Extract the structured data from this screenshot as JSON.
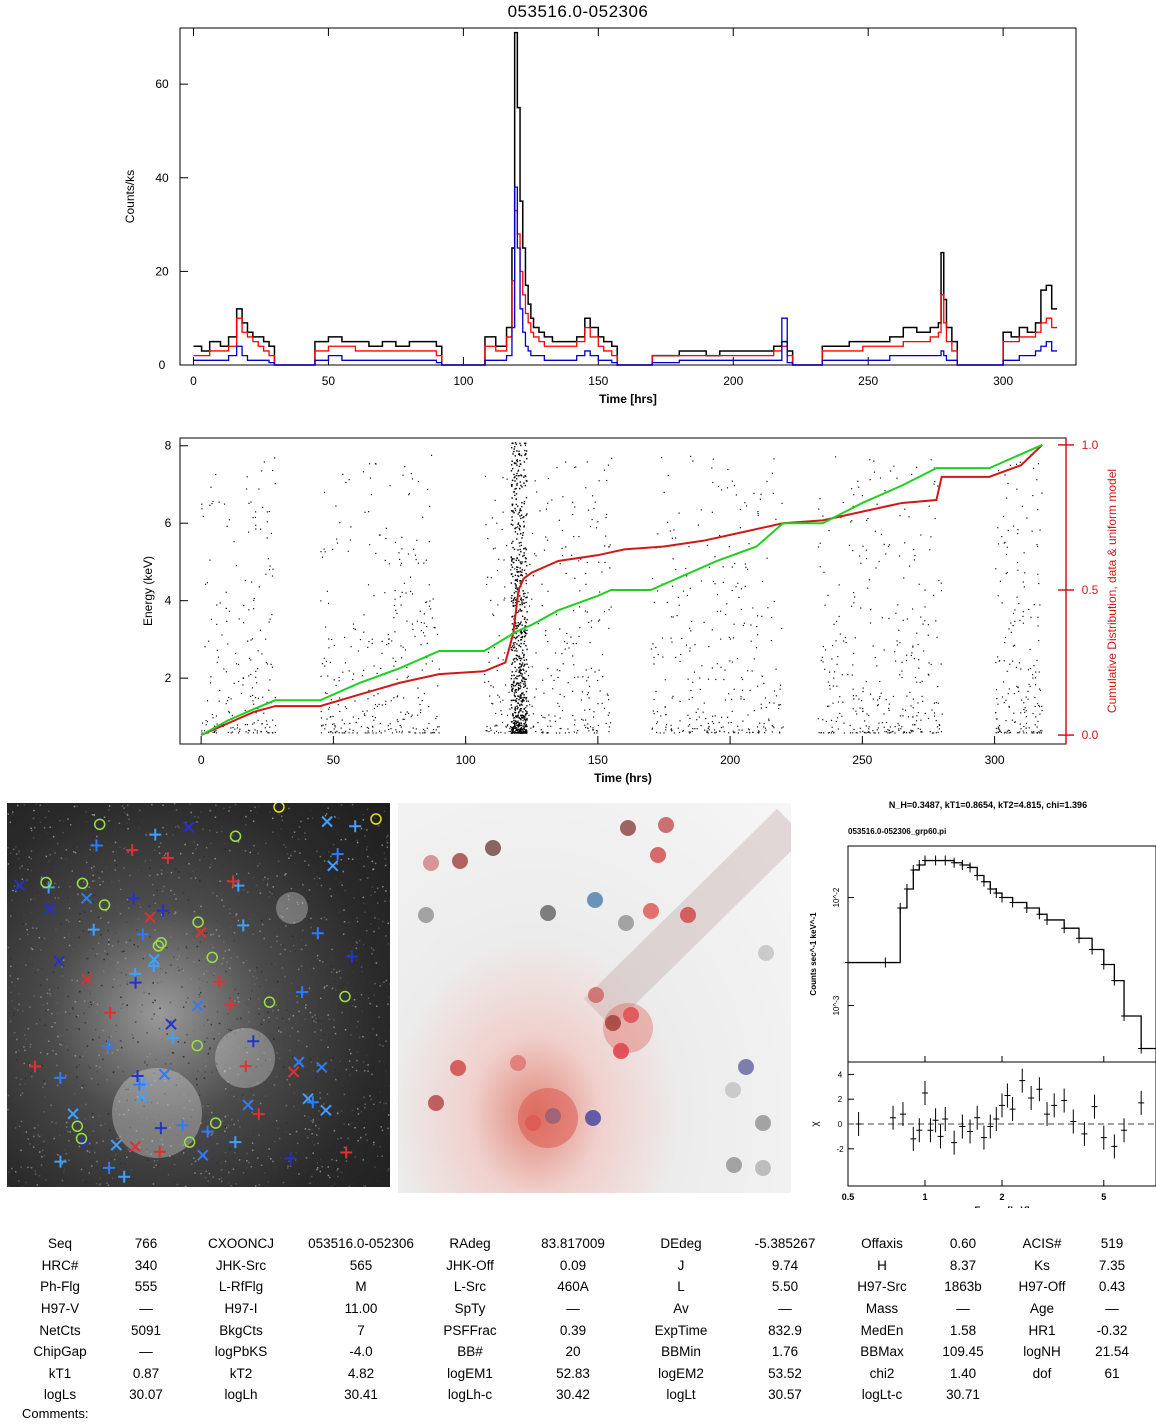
{
  "chart_data": [
    {
      "type": "line",
      "title": "053516.0-052306",
      "xlabel": "Time [hrs]",
      "ylabel": "Counts/ks",
      "xlim": [
        -5,
        327
      ],
      "ylim": [
        0,
        72
      ],
      "xticks": [
        0,
        50,
        100,
        150,
        200,
        250,
        300
      ],
      "yticks": [
        0,
        20,
        40,
        60
      ],
      "series": [
        {
          "color": "#000000",
          "x": [
            0,
            3,
            6,
            10,
            13,
            16,
            18,
            20,
            22,
            24,
            26,
            28,
            45,
            50,
            55,
            60,
            65,
            70,
            75,
            80,
            85,
            90,
            108,
            112,
            116,
            118,
            119,
            120,
            121,
            122,
            123,
            124,
            125,
            126,
            128,
            130,
            133,
            136,
            139,
            142,
            145,
            147,
            150,
            152,
            155,
            170,
            175,
            180,
            185,
            190,
            195,
            200,
            205,
            210,
            215,
            218,
            220,
            233,
            238,
            243,
            248,
            253,
            258,
            263,
            268,
            273,
            276,
            277,
            278,
            279,
            281,
            300,
            303,
            306,
            309,
            312,
            314,
            316,
            318
          ],
          "y": [
            4,
            3,
            5,
            4,
            6,
            12,
            9,
            7,
            6,
            6,
            5,
            4,
            5,
            6,
            5,
            5,
            4,
            5,
            4,
            5,
            5,
            4,
            6,
            4,
            8,
            25,
            71,
            55,
            35,
            25,
            17,
            13,
            10,
            8,
            7,
            6,
            5,
            5,
            5,
            6,
            10,
            8,
            6,
            5,
            4,
            2,
            2,
            3,
            3,
            2,
            3,
            3,
            3,
            3,
            4,
            5,
            3,
            4,
            4,
            5,
            5,
            5,
            6,
            8,
            7,
            8,
            9,
            24,
            14,
            8,
            5,
            7,
            6,
            8,
            7,
            9,
            16,
            17,
            12
          ]
        },
        {
          "color": "#ff0000",
          "x": [
            0,
            3,
            6,
            10,
            13,
            16,
            18,
            20,
            22,
            24,
            26,
            28,
            45,
            50,
            55,
            60,
            65,
            70,
            75,
            80,
            85,
            90,
            108,
            112,
            116,
            118,
            119,
            120,
            121,
            122,
            123,
            124,
            125,
            126,
            128,
            130,
            133,
            136,
            139,
            142,
            145,
            147,
            150,
            152,
            155,
            170,
            175,
            180,
            185,
            190,
            195,
            200,
            205,
            210,
            215,
            218,
            220,
            233,
            238,
            243,
            248,
            253,
            258,
            263,
            268,
            273,
            276,
            277,
            278,
            279,
            281,
            300,
            303,
            306,
            309,
            312,
            314,
            316,
            318
          ],
          "y": [
            2,
            2,
            3,
            3,
            4,
            10,
            7,
            6,
            5,
            4,
            3,
            2,
            3,
            4,
            4,
            3,
            3,
            3,
            3,
            3,
            3,
            2,
            4,
            3,
            6,
            18,
            33,
            28,
            20,
            15,
            11,
            9,
            7,
            6,
            5,
            4,
            4,
            4,
            4,
            5,
            8,
            6,
            4,
            3,
            2,
            2,
            2,
            2,
            2,
            2,
            2,
            2,
            2,
            2,
            3,
            4,
            2,
            3,
            3,
            3,
            4,
            4,
            4,
            5,
            5,
            6,
            7,
            15,
            9,
            5,
            3,
            5,
            5,
            6,
            6,
            7,
            9,
            10,
            8
          ]
        },
        {
          "color": "#0000cc",
          "x": [
            0,
            3,
            6,
            10,
            13,
            16,
            18,
            20,
            22,
            24,
            26,
            28,
            45,
            50,
            55,
            60,
            65,
            70,
            75,
            80,
            85,
            90,
            108,
            112,
            116,
            118,
            119,
            120,
            121,
            122,
            123,
            124,
            125,
            126,
            128,
            130,
            133,
            136,
            139,
            142,
            145,
            147,
            150,
            152,
            155,
            170,
            175,
            180,
            185,
            190,
            195,
            200,
            205,
            210,
            215,
            218,
            220,
            233,
            238,
            243,
            248,
            253,
            258,
            263,
            268,
            273,
            276,
            277,
            278,
            279,
            281,
            300,
            303,
            306,
            309,
            312,
            314,
            316,
            318
          ],
          "y": [
            1,
            1,
            1,
            1,
            2,
            4,
            2,
            1,
            1,
            1,
            1,
            0.5,
            1,
            2,
            1,
            1,
            1,
            1,
            1,
            1,
            1,
            0.5,
            1,
            1,
            2,
            8,
            38,
            25,
            12,
            7,
            4,
            3,
            2,
            2,
            2,
            1,
            1,
            1,
            1,
            2,
            3,
            2,
            1,
            1,
            0.5,
            0.5,
            0.5,
            1,
            1,
            1,
            1,
            1,
            1,
            1,
            1,
            10,
            0.5,
            1,
            1,
            1,
            1,
            1,
            2,
            2,
            2,
            2,
            2,
            3,
            2,
            1,
            1,
            1,
            1,
            2,
            2,
            3,
            4,
            5,
            3
          ]
        }
      ]
    },
    {
      "type": "scatter",
      "xlabel": "Time (hrs)",
      "ylabel": "Energy (keV)",
      "y2label": "Cumulative Distribution, data & uniform model",
      "xlim": [
        -8,
        327
      ],
      "ylim": [
        0.3,
        8.2
      ],
      "y2lim": [
        -0.01,
        1.01
      ],
      "xticks": [
        0,
        50,
        100,
        150,
        200,
        250,
        300
      ],
      "yticks": [
        2,
        4,
        6,
        8
      ],
      "y2ticks": [
        0.0,
        0.5,
        1.0
      ],
      "y2ticklabels": [
        "0.0",
        "0.5",
        "1.0"
      ],
      "series": [
        {
          "name": "data",
          "color": "#d01818",
          "x": [
            0,
            10,
            20,
            28,
            45,
            60,
            75,
            90,
            107,
            115,
            118,
            120,
            122,
            125,
            135,
            150,
            160,
            175,
            190,
            205,
            220,
            235,
            250,
            265,
            278,
            280,
            298,
            310,
            318
          ],
          "y": [
            0,
            0.04,
            0.08,
            0.1,
            0.1,
            0.14,
            0.18,
            0.21,
            0.22,
            0.25,
            0.35,
            0.5,
            0.54,
            0.56,
            0.6,
            0.62,
            0.64,
            0.65,
            0.67,
            0.7,
            0.73,
            0.74,
            0.77,
            0.8,
            0.81,
            0.89,
            0.89,
            0.93,
            1.0
          ]
        },
        {
          "name": "uniform model",
          "color": "#20d020",
          "x": [
            0,
            10,
            20,
            28,
            45,
            60,
            75,
            90,
            107,
            118,
            120,
            125,
            135,
            150,
            155,
            170,
            180,
            195,
            210,
            220,
            235,
            250,
            265,
            278,
            298,
            318
          ],
          "y": [
            0,
            0.05,
            0.09,
            0.12,
            0.12,
            0.18,
            0.23,
            0.29,
            0.29,
            0.35,
            0.36,
            0.38,
            0.43,
            0.48,
            0.5,
            0.5,
            0.54,
            0.6,
            0.65,
            0.73,
            0.73,
            0.8,
            0.86,
            0.92,
            0.92,
            1.0
          ]
        }
      ],
      "event_segments": [
        [
          0,
          28,
          0.4
        ],
        [
          45,
          90,
          0.4
        ],
        [
          107,
          155,
          0.4
        ],
        [
          170,
          220,
          0.35
        ],
        [
          233,
          280,
          0.4
        ],
        [
          300,
          318,
          0.6
        ]
      ]
    },
    {
      "type": "line",
      "header": "N_H=0.3487, kT1=0.8654, kT2=4.815, chi=1.396",
      "subtitle": "053516.0-052306_grp60.pi",
      "xlabel": "Energy [keV]",
      "ylabel": "Counts sec^-1 keV^-1",
      "ylabel2": "χ",
      "xscale": "log",
      "yscale": "log",
      "xlim": [
        0.5,
        8
      ],
      "ylim": [
        0.0003,
        0.03
      ],
      "xticks": [
        0.5,
        1,
        2,
        5
      ],
      "xticklabels": [
        "0.5",
        "1",
        "2",
        "5"
      ],
      "yticks": [
        0.001,
        0.01
      ],
      "yticklabels": [
        "10^-3",
        "10^-2"
      ],
      "residual_ylim": [
        -5,
        5
      ],
      "residual_yticks": [
        -2,
        0,
        2,
        4
      ],
      "spectrum": {
        "x": [
          0.5,
          0.7,
          0.8,
          0.85,
          0.9,
          0.95,
          1.0,
          1.1,
          1.2,
          1.3,
          1.4,
          1.5,
          1.6,
          1.7,
          1.8,
          1.9,
          2.0,
          2.2,
          2.5,
          2.8,
          3.0,
          3.5,
          4.0,
          4.5,
          5.0,
          5.5,
          6.0,
          7.0,
          8.0
        ],
        "y": [
          0.0025,
          0.0025,
          0.008,
          0.012,
          0.018,
          0.02,
          0.022,
          0.022,
          0.022,
          0.021,
          0.02,
          0.019,
          0.016,
          0.014,
          0.012,
          0.011,
          0.01,
          0.009,
          0.008,
          0.007,
          0.0062,
          0.0052,
          0.0042,
          0.0033,
          0.0024,
          0.0017,
          0.0008,
          0.0004,
          0.0004
        ]
      },
      "residuals": {
        "x": [
          0.55,
          0.75,
          0.82,
          0.9,
          0.95,
          1.0,
          1.05,
          1.1,
          1.15,
          1.2,
          1.3,
          1.4,
          1.5,
          1.6,
          1.7,
          1.8,
          1.9,
          2.0,
          2.1,
          2.2,
          2.4,
          2.6,
          2.8,
          3.0,
          3.2,
          3.5,
          3.8,
          4.2,
          4.6,
          5.0,
          5.5,
          6.0,
          7.0
        ],
        "y": [
          0,
          0.5,
          0.8,
          -1.2,
          -0.5,
          2.5,
          -0.5,
          0.3,
          -1.0,
          0.4,
          -1.5,
          -0.2,
          -0.6,
          0.5,
          -1.1,
          -0.2,
          0.4,
          1.5,
          2.3,
          1.2,
          3.5,
          2.1,
          2.8,
          0.8,
          1.5,
          1.9,
          0.2,
          -0.8,
          1.4,
          -1.1,
          -1.8,
          -0.5,
          1.7
        ]
      }
    }
  ],
  "images": [
    {
      "name": "optical-ir-field"
    },
    {
      "name": "xray-smoothed-field"
    }
  ],
  "params": {
    "rows": [
      [
        "Seq",
        "766",
        "CXOONCJ",
        "053516.0-052306",
        "RAdeg",
        "83.817009",
        "DEdeg",
        "-5.385267",
        "Offaxis",
        "0.60",
        "ACIS#",
        "519"
      ],
      [
        "HRC#",
        "340",
        "JHK-Src",
        "565",
        "JHK-Off",
        "0.09",
        "J",
        "9.74",
        "H",
        "8.37",
        "Ks",
        "7.35"
      ],
      [
        "Ph-Flg",
        "555",
        "L-RfFlg",
        "M",
        "L-Src",
        "460A",
        "L",
        "5.50",
        "H97-Src",
        "1863b",
        "H97-Off",
        "0.43"
      ],
      [
        "H97-V",
        "—",
        "H97-I",
        "11.00",
        "SpTy",
        "—",
        "Av",
        "—",
        "Mass",
        "—",
        "Age",
        "—"
      ],
      [
        "NetCts",
        "5091",
        "BkgCts",
        "7",
        "PSFFrac",
        "0.39",
        "ExpTime",
        "832.9",
        "MedEn",
        "1.58",
        "HR1",
        "-0.32"
      ],
      [
        "ChipGap",
        "—",
        "logPbKS",
        "-4.0",
        "BB#",
        "20",
        "BBMin",
        "1.76",
        "BBMax",
        "109.45",
        "logNH",
        "21.54"
      ],
      [
        "kT1",
        "0.87",
        "kT2",
        "4.82",
        "logEM1",
        "52.83",
        "logEM2",
        "53.52",
        "chi2",
        "1.40",
        "dof",
        "61"
      ],
      [
        "logLs",
        "30.07",
        "logLh",
        "30.41",
        "logLh-c",
        "30.42",
        "logLt",
        "30.57",
        "logLt-c",
        "30.71",
        "",
        ""
      ]
    ],
    "comments_label": "Comments:"
  }
}
